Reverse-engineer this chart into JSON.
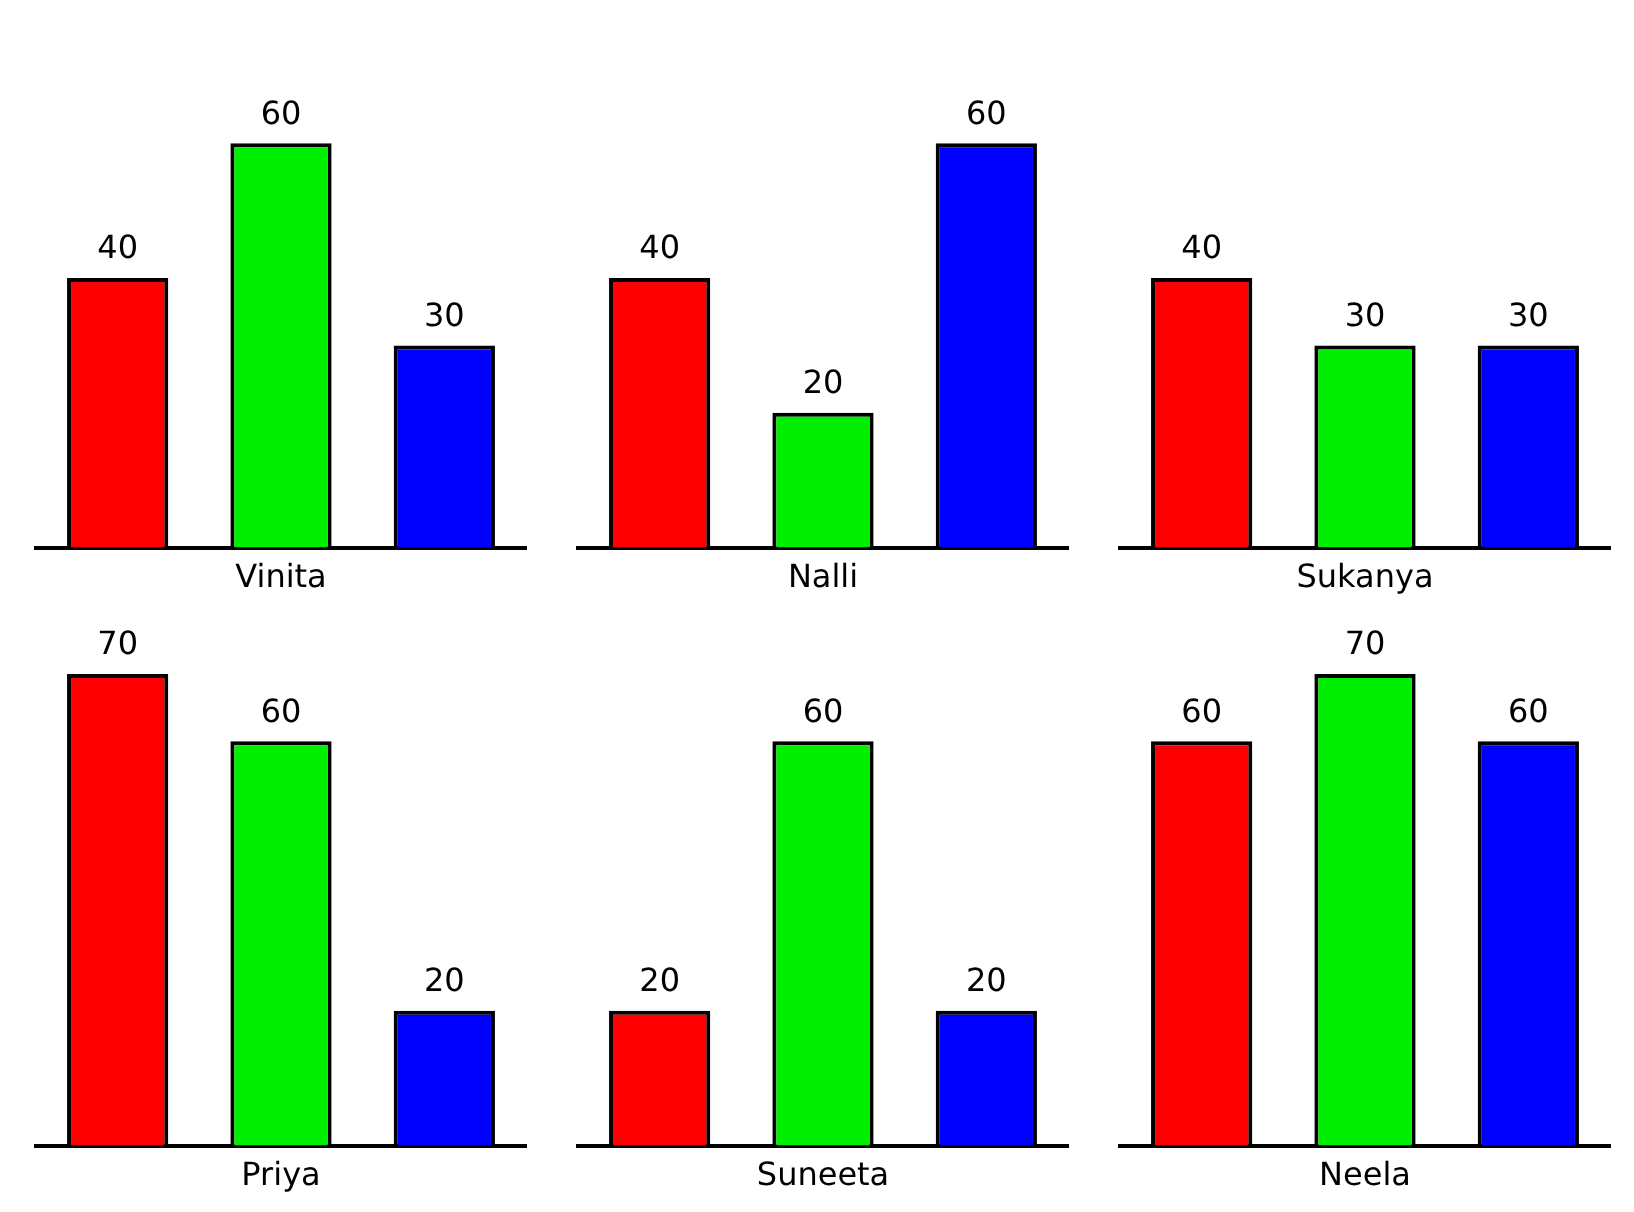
{
  "chart_data": [
    {
      "type": "bar",
      "categories": [
        null,
        null,
        null
      ],
      "values": [
        40,
        60,
        30
      ],
      "colors": [
        "#ff0000",
        "#00ee00",
        "#0000ff"
      ],
      "xlabel": "Vinita",
      "data_labels": true,
      "tick_labels": false,
      "legend": false
    },
    {
      "type": "bar",
      "categories": [
        null,
        null,
        null
      ],
      "values": [
        40,
        20,
        60
      ],
      "colors": [
        "#ff0000",
        "#00ee00",
        "#0000ff"
      ],
      "xlabel": "Nalli",
      "data_labels": true,
      "tick_labels": false,
      "legend": false
    },
    {
      "type": "bar",
      "categories": [
        null,
        null,
        null
      ],
      "values": [
        40,
        30,
        30
      ],
      "colors": [
        "#ff0000",
        "#00ee00",
        "#0000ff"
      ],
      "xlabel": "Sukanya",
      "data_labels": true,
      "tick_labels": false,
      "legend": false
    },
    {
      "type": "bar",
      "categories": [
        null,
        null,
        null
      ],
      "values": [
        70,
        60,
        20
      ],
      "colors": [
        "#ff0000",
        "#00ee00",
        "#0000ff"
      ],
      "xlabel": "Priya",
      "data_labels": true,
      "tick_labels": false,
      "legend": false
    },
    {
      "type": "bar",
      "categories": [
        null,
        null,
        null
      ],
      "values": [
        20,
        60,
        20
      ],
      "colors": [
        "#ff0000",
        "#00ee00",
        "#0000ff"
      ],
      "xlabel": "Suneeta",
      "data_labels": true,
      "tick_labels": false,
      "legend": false
    },
    {
      "type": "bar",
      "categories": [
        null,
        null,
        null
      ],
      "values": [
        60,
        70,
        60
      ],
      "colors": [
        "#ff0000",
        "#00ee00",
        "#0000ff"
      ],
      "xlabel": "Neela",
      "data_labels": true,
      "tick_labels": false,
      "legend": false
    }
  ]
}
